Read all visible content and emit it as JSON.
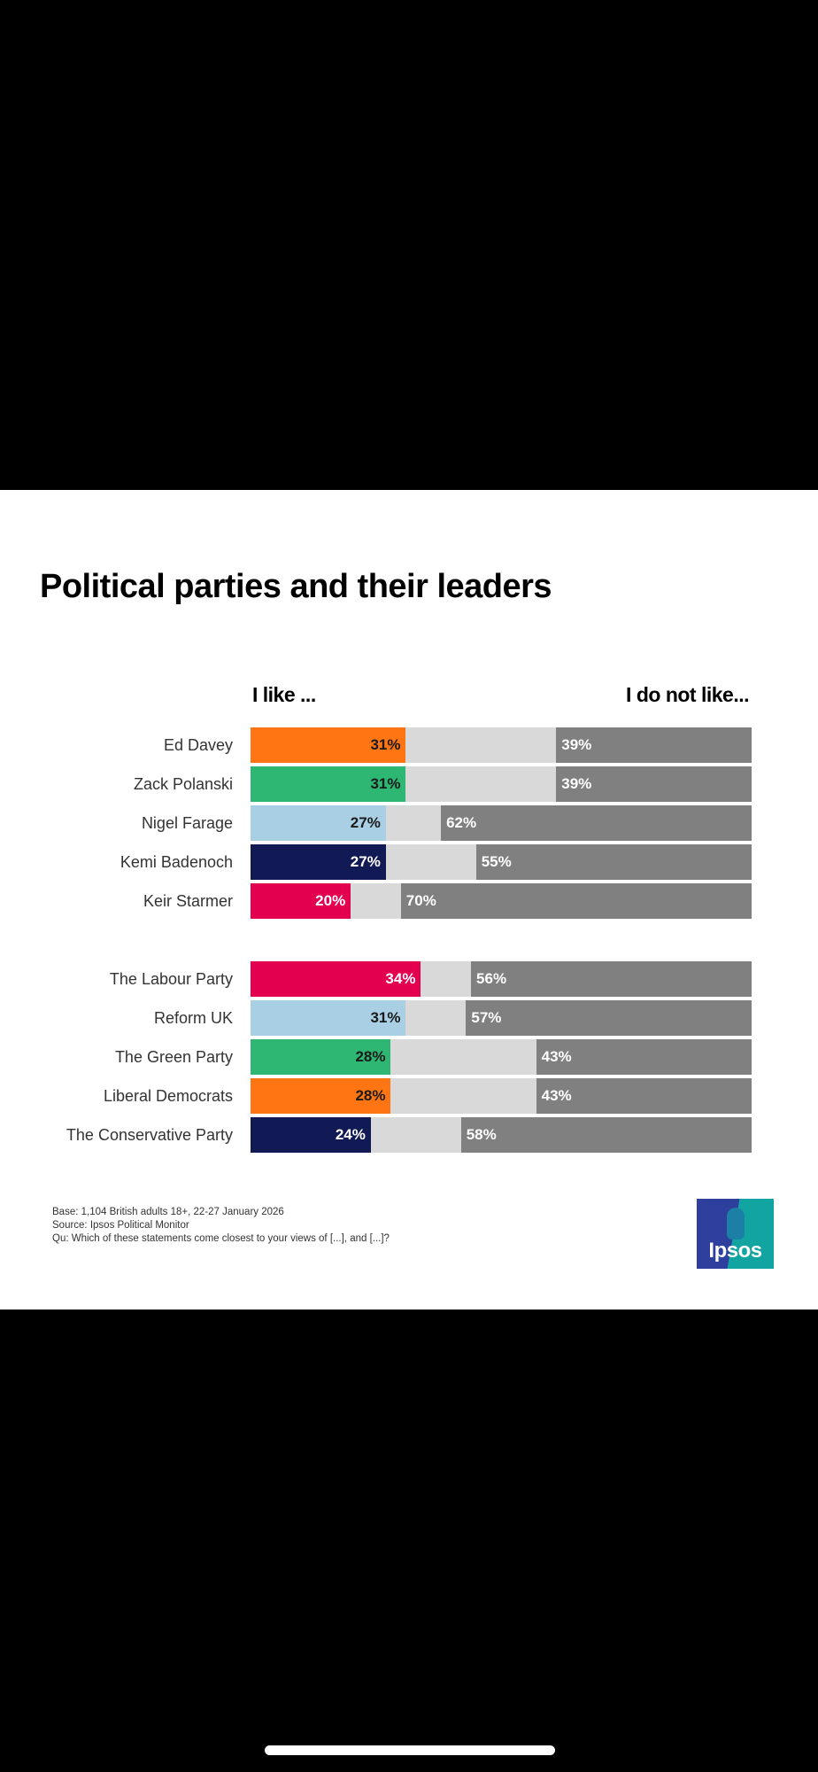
{
  "title": "Political parties and their leaders",
  "footer": {
    "base": "Base: 1,104 British adults 18+, 22-27 January 2026",
    "source": "Source: Ipsos Political Monitor",
    "question": "Qu: Which of these statements come closest to your views of [...], and [...]?"
  },
  "logo": {
    "text": "Ipsos"
  },
  "chart_data": {
    "type": "bar",
    "orientation": "horizontal-stacked",
    "title": "Political parties and their leaders",
    "left_header": "I like ...",
    "right_header": "I do not like...",
    "xlim": [
      0,
      100
    ],
    "colors": {
      "neutral": "#d9d9d9",
      "dislike": "#808080"
    },
    "groups": [
      {
        "items": [
          {
            "label": "Ed Davey",
            "like": 31,
            "dislike": 39,
            "color": "#ff7514",
            "like_text": "31%",
            "dislike_text": "39%",
            "dark_text": true
          },
          {
            "label": "Zack Polanski",
            "like": 31,
            "dislike": 39,
            "color": "#2eb673",
            "like_text": "31%",
            "dislike_text": "39%",
            "dark_text": true
          },
          {
            "label": "Nigel Farage",
            "like": 27,
            "dislike": 62,
            "color": "#a9cfe4",
            "like_text": "27%",
            "dislike_text": "62%",
            "dark_text": true
          },
          {
            "label": "Kemi Badenoch",
            "like": 27,
            "dislike": 55,
            "color": "#111a55",
            "like_text": "27%",
            "dislike_text": "55%",
            "dark_text": false
          },
          {
            "label": "Keir Starmer",
            "like": 20,
            "dislike": 70,
            "color": "#e2004f",
            "like_text": "20%",
            "dislike_text": "70%",
            "dark_text": false
          }
        ]
      },
      {
        "items": [
          {
            "label": "The Labour Party",
            "like": 34,
            "dislike": 56,
            "color": "#e2004f",
            "like_text": "34%",
            "dislike_text": "56%",
            "dark_text": false
          },
          {
            "label": "Reform UK",
            "like": 31,
            "dislike": 57,
            "color": "#a9cfe4",
            "like_text": "31%",
            "dislike_text": "57%",
            "dark_text": true
          },
          {
            "label": "The Green Party",
            "like": 28,
            "dislike": 43,
            "color": "#2eb673",
            "like_text": "28%",
            "dislike_text": "43%",
            "dark_text": true
          },
          {
            "label": "Liberal Democrats",
            "like": 28,
            "dislike": 43,
            "color": "#ff7514",
            "like_text": "28%",
            "dislike_text": "43%",
            "dark_text": true
          },
          {
            "label": "The Conservative Party",
            "like": 24,
            "dislike": 58,
            "color": "#111a55",
            "like_text": "24%",
            "dislike_text": "58%",
            "dark_text": false
          }
        ]
      }
    ]
  }
}
